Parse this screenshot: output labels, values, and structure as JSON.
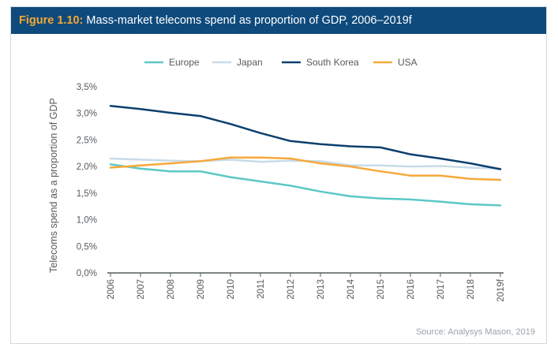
{
  "header": {
    "figure_label": "Figure 1.10:",
    "title": " Mass-market telecoms spend as proportion of GDP, 2006–2019f"
  },
  "source": "Source: Analysys Mason, 2019",
  "colors": {
    "header_bg": "#0f4a7c",
    "figure_label": "#f5a833",
    "Europe": "#5cc8c6",
    "Japan": "#c8dbe8",
    "South Korea": "#0d3f6e",
    "USA": "#f6a93b"
  },
  "chart_data": {
    "type": "line",
    "title": "Mass-market telecoms spend as proportion of GDP, 2006–2019f",
    "ylabel": "Telecoms spend as a proportion of GDP",
    "xlabel": "",
    "categories": [
      "2006",
      "2007",
      "2008",
      "2009",
      "2010",
      "2011",
      "2012",
      "2013",
      "2014",
      "2015",
      "2016",
      "2017",
      "2018",
      "2019f"
    ],
    "yticks": [
      "0,0%",
      "0,5%",
      "1,0%",
      "1,5%",
      "2,0%",
      "2,5%",
      "3,0%",
      "3,5%"
    ],
    "ylim": [
      0,
      3.5
    ],
    "legend_position": "top",
    "grid": false,
    "series": [
      {
        "name": "Europe",
        "color": "#5cc8c6",
        "values": [
          2.04,
          1.96,
          1.91,
          1.91,
          1.8,
          1.72,
          1.64,
          1.53,
          1.44,
          1.4,
          1.38,
          1.34,
          1.29,
          1.27
        ]
      },
      {
        "name": "Japan",
        "color": "#c8dbe8",
        "values": [
          2.15,
          2.13,
          2.11,
          2.1,
          2.13,
          2.09,
          2.11,
          2.1,
          2.02,
          2.02,
          2.0,
          2.01,
          1.98,
          1.96
        ]
      },
      {
        "name": "South Korea",
        "color": "#0d3f6e",
        "values": [
          3.14,
          3.08,
          3.01,
          2.95,
          2.8,
          2.63,
          2.48,
          2.42,
          2.38,
          2.36,
          2.23,
          2.15,
          2.06,
          1.95
        ]
      },
      {
        "name": "USA",
        "color": "#f6a93b",
        "values": [
          1.98,
          2.02,
          2.06,
          2.1,
          2.17,
          2.17,
          2.15,
          2.06,
          2.0,
          1.91,
          1.83,
          1.83,
          1.77,
          1.75
        ]
      }
    ]
  }
}
